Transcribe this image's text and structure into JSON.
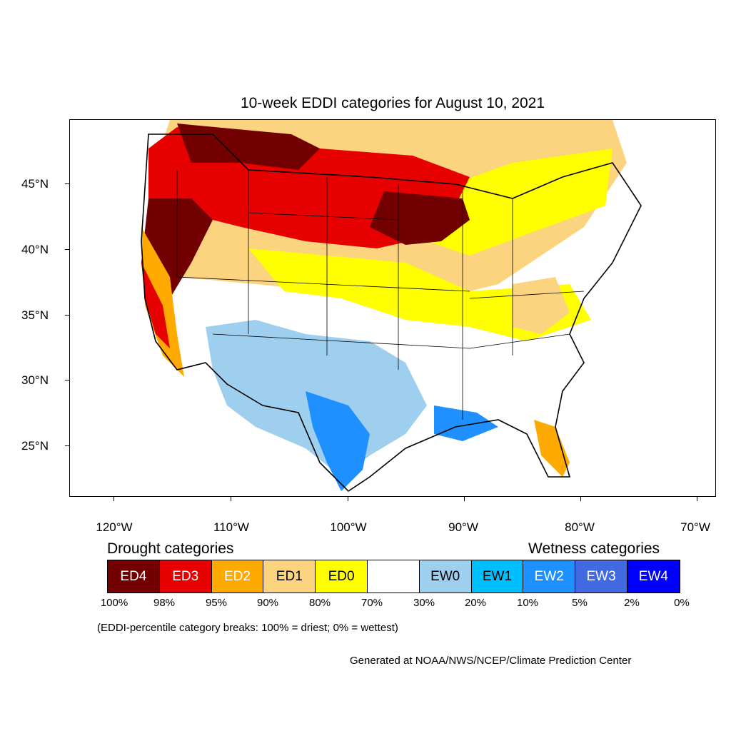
{
  "map": {
    "title": "10-week EDDI categories for August 10, 2021",
    "lat_labels": [
      "45°N",
      "40°N",
      "35°N",
      "30°N",
      "25°N"
    ],
    "lon_labels": [
      "120°W",
      "110°W",
      "100°W",
      "90°W",
      "80°W",
      "70°W"
    ]
  },
  "legend": {
    "drought_heading": "Drought categories",
    "wetness_heading": "Wetness categories",
    "categories": [
      {
        "label": "ED4",
        "color": "#730000",
        "text_color": "#ffffff"
      },
      {
        "label": "ED3",
        "color": "#e60000",
        "text_color": "#ffffff"
      },
      {
        "label": "ED2",
        "color": "#ffaa00",
        "text_color": "#ffffff"
      },
      {
        "label": "ED1",
        "color": "#fcd37f",
        "text_color": "#000000"
      },
      {
        "label": "ED0",
        "color": "#ffff00",
        "text_color": "#000000"
      },
      {
        "label": "",
        "color": "#ffffff",
        "text_color": "#000000"
      },
      {
        "label": "EW0",
        "color": "#9fcfef",
        "text_color": "#000000"
      },
      {
        "label": "EW1",
        "color": "#00bfff",
        "text_color": "#000000"
      },
      {
        "label": "EW2",
        "color": "#1e90ff",
        "text_color": "#ffffff"
      },
      {
        "label": "EW3",
        "color": "#4169e1",
        "text_color": "#ffffff"
      },
      {
        "label": "EW4",
        "color": "#0000ff",
        "text_color": "#ffffff"
      }
    ],
    "percent_breaks": [
      "100%",
      "98%",
      "95%",
      "90%",
      "80%",
      "70%",
      "30%",
      "20%",
      "10%",
      "5%",
      "2%",
      "0%"
    ],
    "note": "(EDDI-percentile category breaks: 100% = driest; 0% = wettest)",
    "credit": "Generated at NOAA/NWS/NCEP/Climate Prediction Center"
  }
}
